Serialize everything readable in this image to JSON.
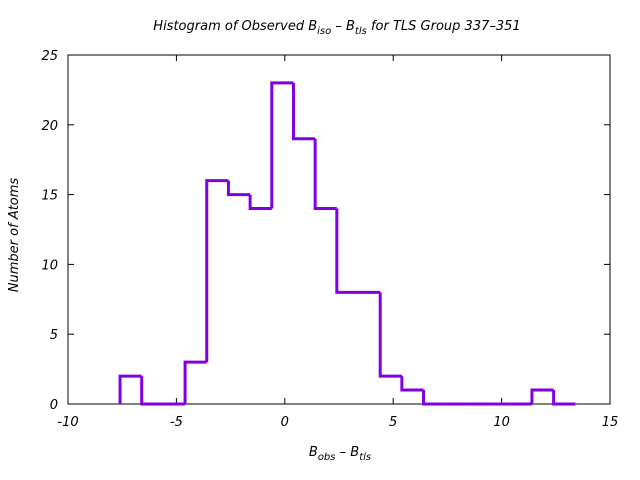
{
  "chart_data": {
    "type": "histogram",
    "title": {
      "prefix": "Histogram of Observed B",
      "sub1": "iso",
      "mid": " – B",
      "sub2": "tls",
      "suffix": " for TLS Group 337–351"
    },
    "xlabel": {
      "b1": "B",
      "s1": "obs",
      "mid": " – B",
      "s2": "tls"
    },
    "ylabel": "Number of Atoms",
    "xlim": [
      -10,
      15
    ],
    "ylim": [
      0,
      25
    ],
    "xticks": [
      -10,
      -5,
      0,
      5,
      10,
      15
    ],
    "yticks": [
      0,
      5,
      10,
      15,
      20,
      25
    ],
    "bin_width": 1,
    "bin_edges_start": -7.6,
    "counts": [
      2,
      0,
      0,
      3,
      16,
      15,
      14,
      23,
      19,
      14,
      8,
      8,
      2,
      1,
      0,
      0,
      0,
      0,
      0,
      1,
      0
    ],
    "line_color": "#8000e0",
    "grid": false
  }
}
